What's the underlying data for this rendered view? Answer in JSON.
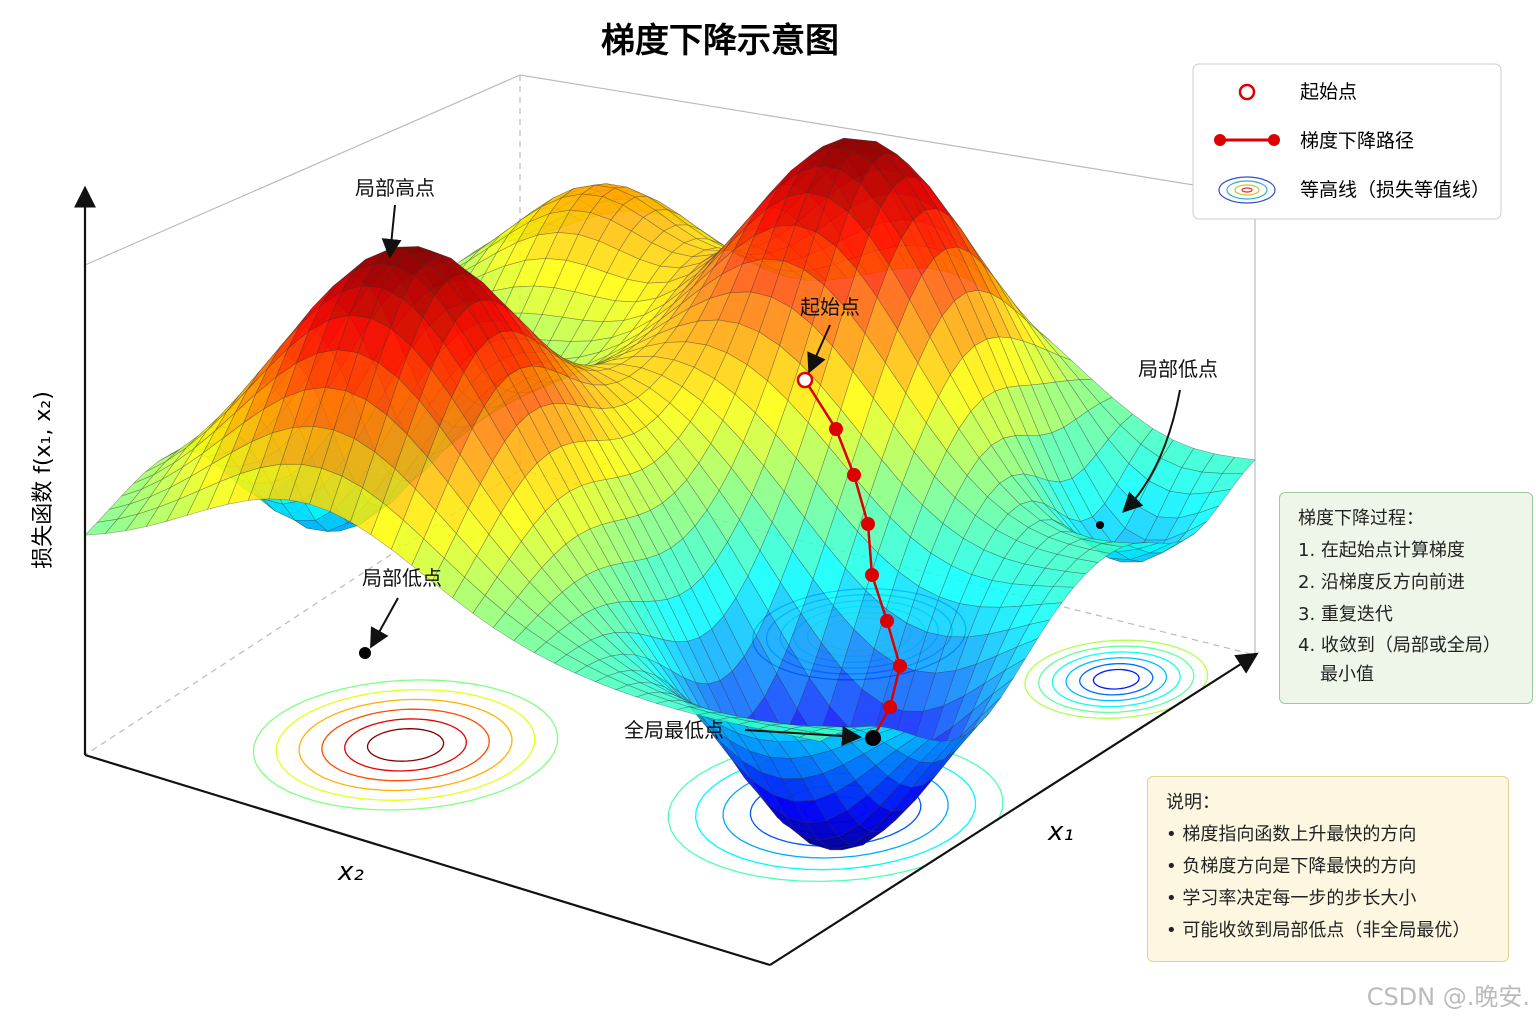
{
  "title": "梯度下降示意图",
  "legend": [
    "起始点",
    "梯度下降路径",
    "等高线（损失等值线）"
  ],
  "annotations": {
    "local_max": "局部高点",
    "start": "起始点",
    "local_min_left": "局部低点",
    "local_min_right": "局部低点",
    "global_min": "全局最低点"
  },
  "axes": {
    "z": "损失函数 f(x₁, x₂)",
    "x1": "x₁",
    "x2": "x₂"
  },
  "process": {
    "title": "梯度下降过程：",
    "items": [
      "1. 在起始点计算梯度",
      "2. 沿梯度反方向前进",
      "3. 重复迭代",
      "4. 收敛到（局部或全局）最小值"
    ]
  },
  "notes": {
    "title": "说明：",
    "items": [
      "• 梯度指向函数上升最快的方向",
      "• 负梯度方向是下降最快的方向",
      "• 学习率决定每一步的步长大小",
      "• 可能收敛到局部低点（非全局最优）"
    ]
  },
  "watermark": "CSDN @.晚安."
}
